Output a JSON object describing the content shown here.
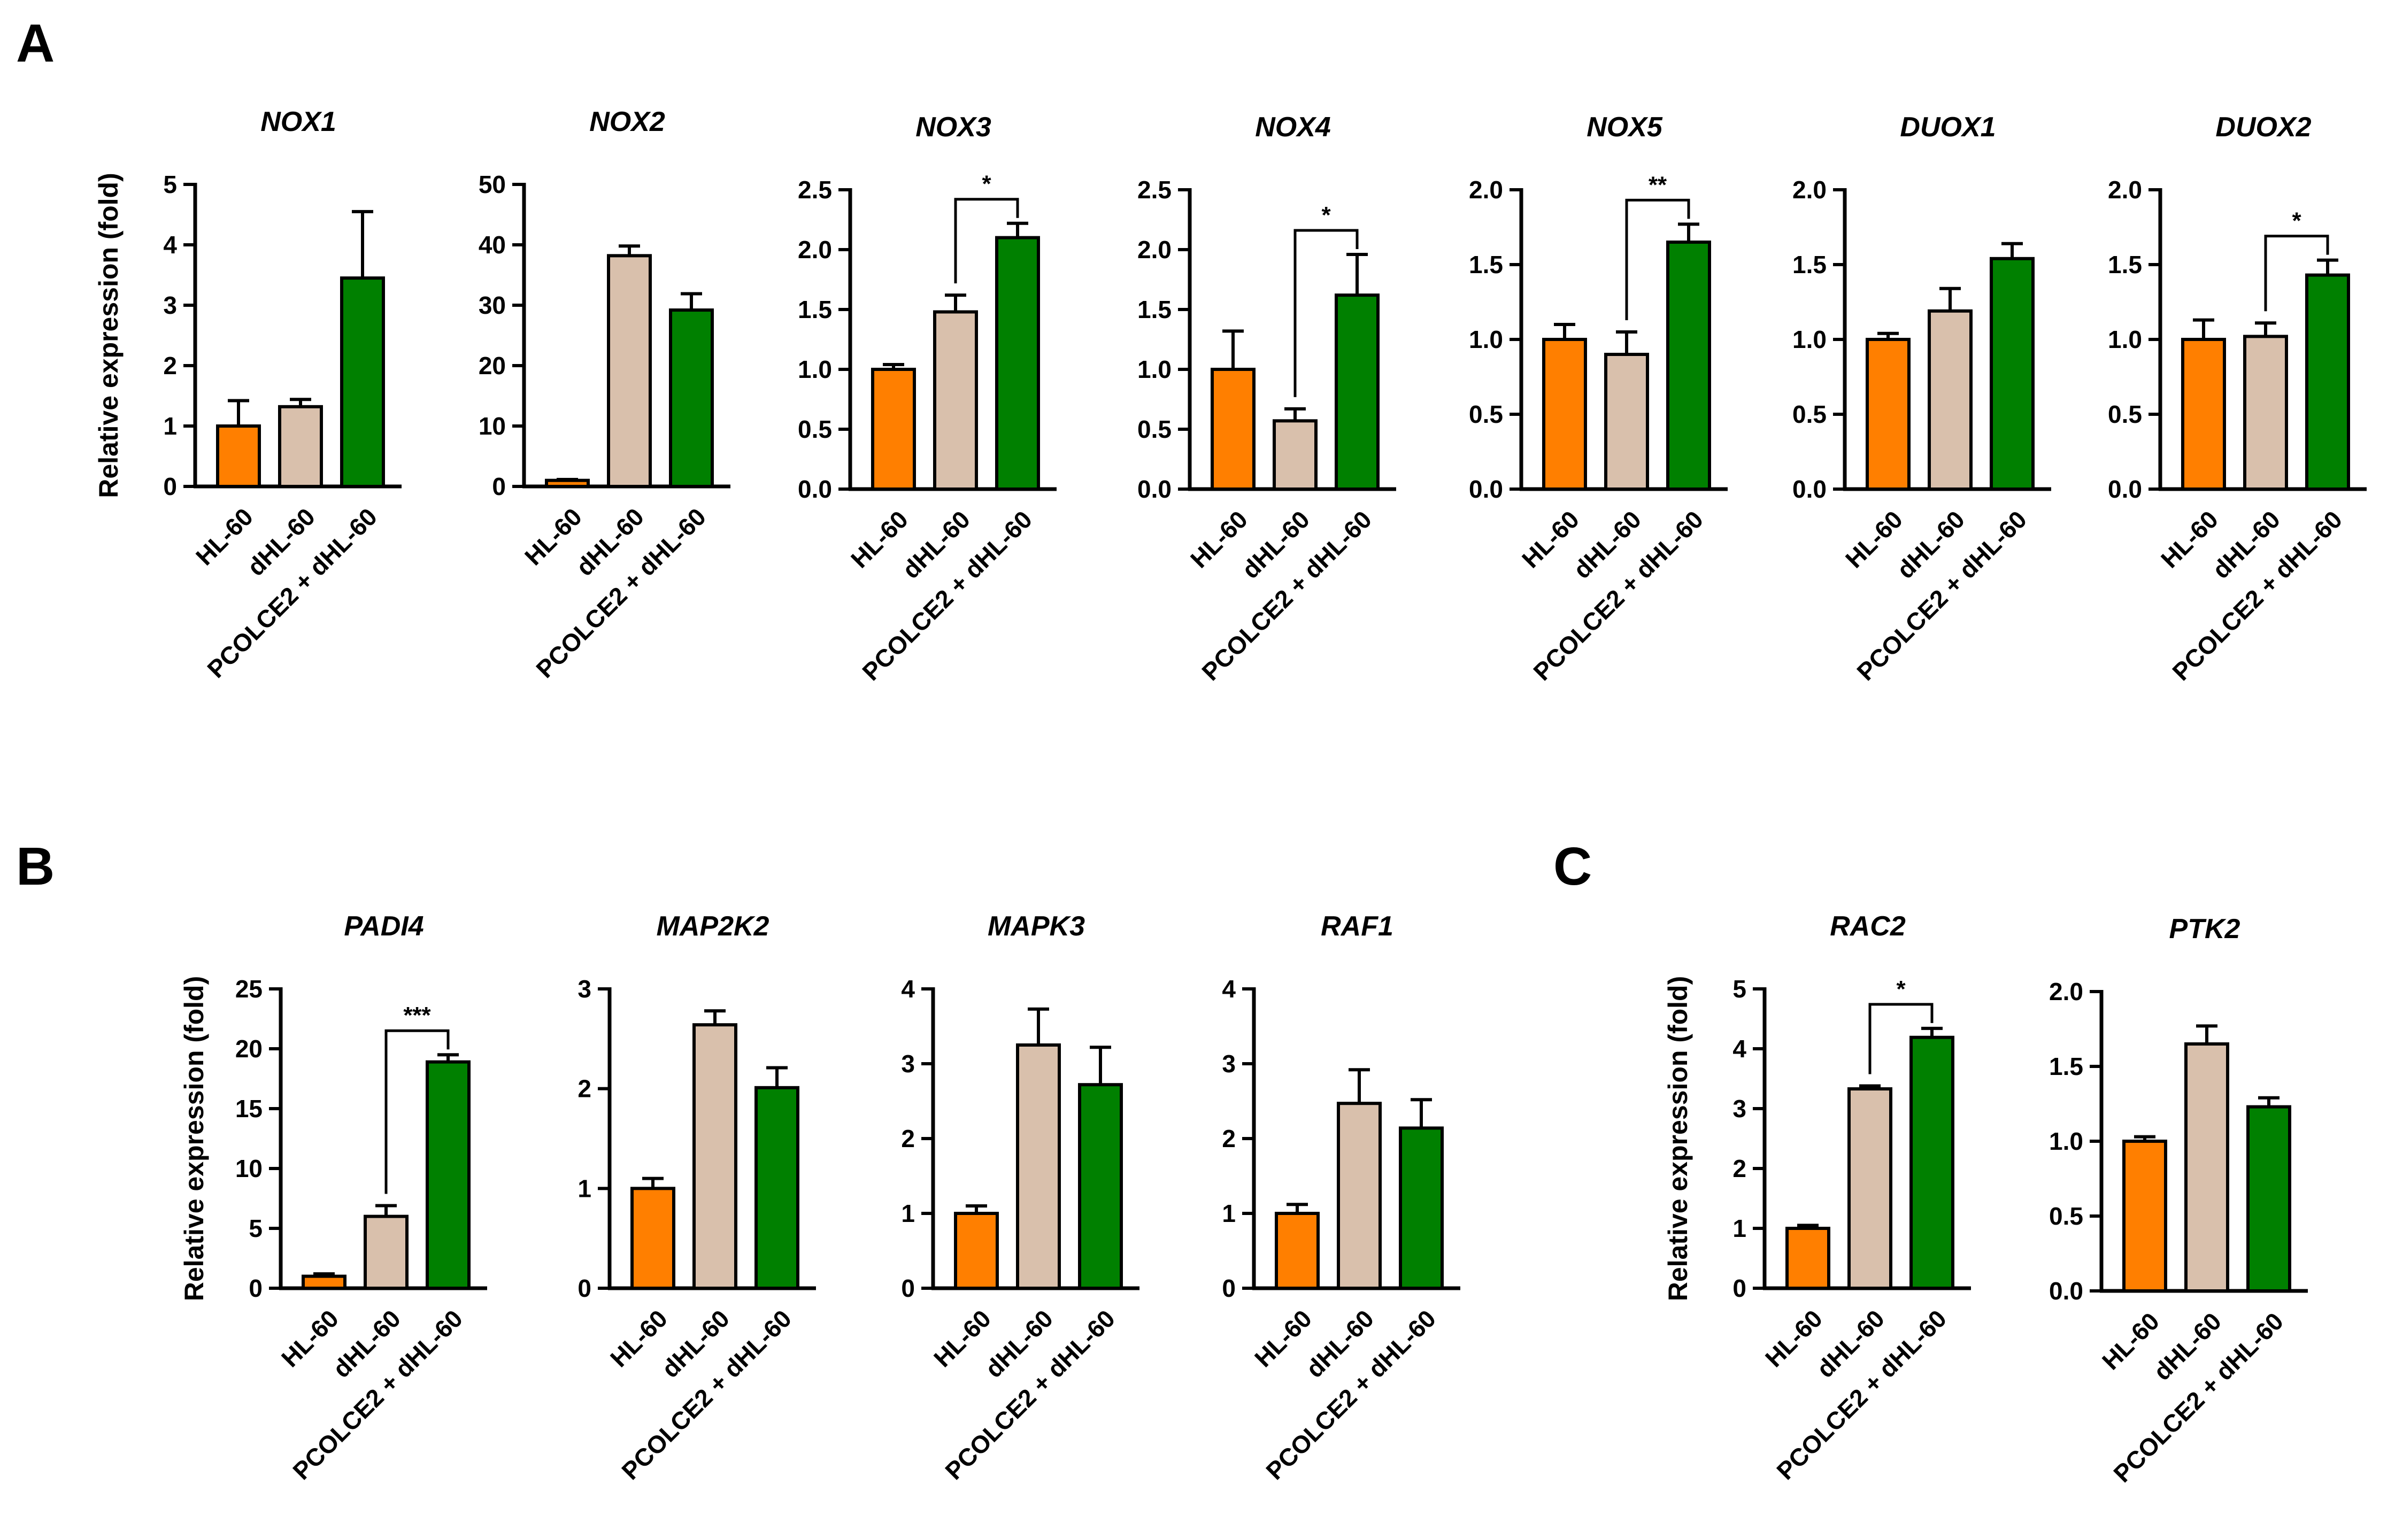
{
  "panel_labels": [
    "A",
    "B",
    "C"
  ],
  "ylabel": "Relative expression (fold)",
  "legend": {
    "categories": [
      "HL-60",
      "dHL-60",
      "PCOLCE2 + dHL-60"
    ],
    "colors": [
      "#FF7F00",
      "#D9C0AC",
      "#008000"
    ]
  },
  "chart_data": [
    {
      "type": "bar",
      "panel": "A",
      "title": "NOX1",
      "categories": [
        "HL-60",
        "dHL-60",
        "PCOLCE2 + dHL-60"
      ],
      "values": [
        1.0,
        1.32,
        3.45
      ],
      "errors": [
        0.42,
        0.12,
        1.1
      ],
      "ylim": [
        0,
        5
      ],
      "yticks": [
        "0",
        "1",
        "2",
        "3",
        "4",
        "5"
      ],
      "ylabel": "Relative expression (fold)",
      "significance": []
    },
    {
      "type": "bar",
      "panel": "A",
      "title": "NOX2",
      "categories": [
        "HL-60",
        "dHL-60",
        "PCOLCE2 + dHL-60"
      ],
      "values": [
        1.0,
        38.2,
        29.2
      ],
      "errors": [
        0.15,
        1.6,
        2.7
      ],
      "ylim": [
        0,
        50
      ],
      "yticks": [
        "0",
        "10",
        "20",
        "30",
        "40",
        "50"
      ],
      "significance": []
    },
    {
      "type": "bar",
      "panel": "A",
      "title": "NOX3",
      "categories": [
        "HL-60",
        "dHL-60",
        "PCOLCE2 + dHL-60"
      ],
      "values": [
        1.0,
        1.48,
        2.1
      ],
      "errors": [
        0.04,
        0.14,
        0.12
      ],
      "ylim": [
        0,
        2.5
      ],
      "yticks": [
        "0.0",
        "0.5",
        "1.0",
        "1.5",
        "2.0",
        "2.5"
      ],
      "significance": [
        {
          "from": 1,
          "to": 2,
          "label": "*"
        }
      ]
    },
    {
      "type": "bar",
      "panel": "A",
      "title": "NOX4",
      "categories": [
        "HL-60",
        "dHL-60",
        "PCOLCE2 + dHL-60"
      ],
      "values": [
        1.0,
        0.57,
        1.62
      ],
      "errors": [
        0.32,
        0.1,
        0.34
      ],
      "ylim": [
        0,
        2.5
      ],
      "yticks": [
        "0.0",
        "0.5",
        "1.0",
        "1.5",
        "2.0",
        "2.5"
      ],
      "significance": [
        {
          "from": 1,
          "to": 2,
          "label": "*"
        }
      ]
    },
    {
      "type": "bar",
      "panel": "A",
      "title": "NOX5",
      "categories": [
        "HL-60",
        "dHL-60",
        "PCOLCE2 + dHL-60"
      ],
      "values": [
        1.0,
        0.9,
        1.65
      ],
      "errors": [
        0.1,
        0.15,
        0.12
      ],
      "ylim": [
        0,
        2.0
      ],
      "yticks": [
        "0.0",
        "0.5",
        "1.0",
        "1.5",
        "2.0"
      ],
      "significance": [
        {
          "from": 1,
          "to": 2,
          "label": "**"
        }
      ]
    },
    {
      "type": "bar",
      "panel": "A",
      "title": "DUOX1",
      "categories": [
        "HL-60",
        "dHL-60",
        "PCOLCE2 + dHL-60"
      ],
      "values": [
        1.0,
        1.19,
        1.54
      ],
      "errors": [
        0.04,
        0.15,
        0.1
      ],
      "ylim": [
        0,
        2.0
      ],
      "yticks": [
        "0.0",
        "0.5",
        "1.0",
        "1.5",
        "2.0"
      ],
      "significance": []
    },
    {
      "type": "bar",
      "panel": "A",
      "title": "DUOX2",
      "categories": [
        "HL-60",
        "dHL-60",
        "PCOLCE2 + dHL-60"
      ],
      "values": [
        1.0,
        1.02,
        1.43
      ],
      "errors": [
        0.13,
        0.09,
        0.1
      ],
      "ylim": [
        0,
        2.0
      ],
      "yticks": [
        "0.0",
        "0.5",
        "1.0",
        "1.5",
        "2.0"
      ],
      "significance": [
        {
          "from": 1,
          "to": 2,
          "label": "*"
        }
      ]
    },
    {
      "type": "bar",
      "panel": "B",
      "title": "PADI4",
      "categories": [
        "HL-60",
        "dHL-60",
        "PCOLCE2 + dHL-60"
      ],
      "values": [
        1.0,
        6.0,
        18.9
      ],
      "errors": [
        0.2,
        0.9,
        0.6
      ],
      "ylim": [
        0,
        25
      ],
      "yticks": [
        "0",
        "5",
        "10",
        "15",
        "20",
        "25"
      ],
      "ylabel": "Relative expression (fold)",
      "significance": [
        {
          "from": 1,
          "to": 2,
          "label": "***"
        }
      ]
    },
    {
      "type": "bar",
      "panel": "B",
      "title": "MAP2K2",
      "categories": [
        "HL-60",
        "dHL-60",
        "PCOLCE2 + dHL-60"
      ],
      "values": [
        1.0,
        2.64,
        2.01
      ],
      "errors": [
        0.1,
        0.14,
        0.2
      ],
      "ylim": [
        0,
        3
      ],
      "yticks": [
        "0",
        "1",
        "2",
        "3"
      ],
      "significance": []
    },
    {
      "type": "bar",
      "panel": "B",
      "title": "MAPK3",
      "categories": [
        "HL-60",
        "dHL-60",
        "PCOLCE2 + dHL-60"
      ],
      "values": [
        1.0,
        3.25,
        2.72
      ],
      "errors": [
        0.1,
        0.48,
        0.5
      ],
      "ylim": [
        0,
        4
      ],
      "yticks": [
        "0",
        "1",
        "2",
        "3",
        "4"
      ],
      "significance": []
    },
    {
      "type": "bar",
      "panel": "B",
      "title": "RAF1",
      "categories": [
        "HL-60",
        "dHL-60",
        "PCOLCE2 + dHL-60"
      ],
      "values": [
        1.0,
        2.47,
        2.14
      ],
      "errors": [
        0.12,
        0.45,
        0.38
      ],
      "ylim": [
        0,
        4
      ],
      "yticks": [
        "0",
        "1",
        "2",
        "3",
        "4"
      ],
      "significance": []
    },
    {
      "type": "bar",
      "panel": "C",
      "title": "RAC2",
      "categories": [
        "HL-60",
        "dHL-60",
        "PCOLCE2 + dHL-60"
      ],
      "values": [
        1.0,
        3.33,
        4.19
      ],
      "errors": [
        0.05,
        0.05,
        0.15
      ],
      "ylim": [
        0,
        5
      ],
      "yticks": [
        "0",
        "1",
        "2",
        "3",
        "4",
        "5"
      ],
      "ylabel": "Relative expression (fold)",
      "significance": [
        {
          "from": 1,
          "to": 2,
          "label": "*"
        }
      ]
    },
    {
      "type": "bar",
      "panel": "C",
      "title": "PTK2",
      "categories": [
        "HL-60",
        "dHL-60",
        "PCOLCE2 + dHL-60"
      ],
      "values": [
        1.0,
        1.65,
        1.23
      ],
      "errors": [
        0.03,
        0.12,
        0.06
      ],
      "ylim": [
        0,
        2.0
      ],
      "yticks": [
        "0.0",
        "0.5",
        "1.0",
        "1.5",
        "2.0"
      ],
      "significance": []
    }
  ]
}
